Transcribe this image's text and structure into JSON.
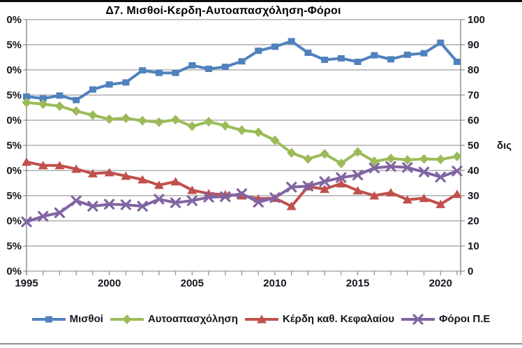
{
  "window": {
    "top_bar": "",
    "bottom_rule": ""
  },
  "chart": {
    "title": "Δ7. Μισθοί-Κερδη-Αυτοαπασχόληση-Φόροι",
    "right_axis_unit": "δις"
  },
  "chart_data": {
    "type": "line",
    "title": "Δ7. Μισθοί-Κερδη-Αυτοαπασχόληση-Φόροι",
    "x": [
      1995,
      1996,
      1997,
      1998,
      1999,
      2000,
      2001,
      2002,
      2003,
      2004,
      2005,
      2006,
      2007,
      2008,
      2009,
      2010,
      2011,
      2012,
      2013,
      2014,
      2015,
      2016,
      2017,
      2018,
      2019,
      2020,
      2021
    ],
    "x_tick_labels": [
      "1995",
      "2000",
      "2005",
      "2010",
      "2015",
      "2020"
    ],
    "left_axis_tick_labels_as_shown": [
      "0%",
      "5%",
      "0%",
      "5%",
      "0%",
      "5%",
      "0%",
      "5%",
      "0%",
      "5%",
      "0%"
    ],
    "left_axis_range_percent": [
      0,
      50
    ],
    "right_axis_tick_labels": [
      "100",
      "90",
      "80",
      "70",
      "60",
      "50",
      "40",
      "30",
      "20",
      "10",
      "0"
    ],
    "right_axis_range": [
      0,
      100
    ],
    "right_axis_title": "δις",
    "grid": true,
    "legend_position": "bottom",
    "series": [
      {
        "name": "Μισθοί",
        "color": "#4F81BD",
        "marker": "square",
        "values": [
          34.7,
          34.3,
          34.9,
          34.0,
          36.1,
          37.1,
          37.5,
          39.9,
          39.4,
          39.4,
          40.9,
          40.2,
          40.6,
          41.7,
          43.8,
          44.6,
          45.7,
          43.4,
          42.0,
          42.3,
          41.6,
          42.9,
          42.1,
          43.0,
          43.3,
          45.4,
          41.6
        ]
      },
      {
        "name": "Αυτοαπασχόληση",
        "color": "#9BBB59",
        "marker": "diamond",
        "values": [
          33.5,
          33.2,
          32.8,
          31.8,
          31.0,
          30.2,
          30.4,
          29.9,
          29.6,
          30.1,
          28.8,
          29.7,
          28.9,
          28.0,
          27.6,
          26.0,
          23.5,
          22.3,
          23.3,
          21.4,
          23.7,
          21.8,
          22.4,
          22.1,
          22.3,
          22.2,
          22.8
        ]
      },
      {
        "name": "Κέρδη καθ. Κεφαλαίου",
        "color": "#C0504D",
        "marker": "triangle",
        "values": [
          21.7,
          21.0,
          21.0,
          20.3,
          19.4,
          19.6,
          18.9,
          18.2,
          17.1,
          17.8,
          16.1,
          15.4,
          15.2,
          15.0,
          14.4,
          14.5,
          12.9,
          16.8,
          16.3,
          17.4,
          16.0,
          15.0,
          15.6,
          14.2,
          14.5,
          13.3,
          15.3
        ]
      },
      {
        "name": "Φόροι Π.Ε",
        "color": "#8064A2",
        "marker": "x",
        "values": [
          9.8,
          10.9,
          11.6,
          14.0,
          12.9,
          13.3,
          13.2,
          12.9,
          14.3,
          13.6,
          14.0,
          14.7,
          14.8,
          15.4,
          13.7,
          14.6,
          16.7,
          16.9,
          17.8,
          18.6,
          19.1,
          20.5,
          20.8,
          20.6,
          19.7,
          18.7,
          19.9
        ]
      }
    ],
    "style": {
      "gridline_color": "#9e9e9e",
      "axis_color": "#8a8a8a",
      "tick_text_color": "#16161f"
    }
  }
}
